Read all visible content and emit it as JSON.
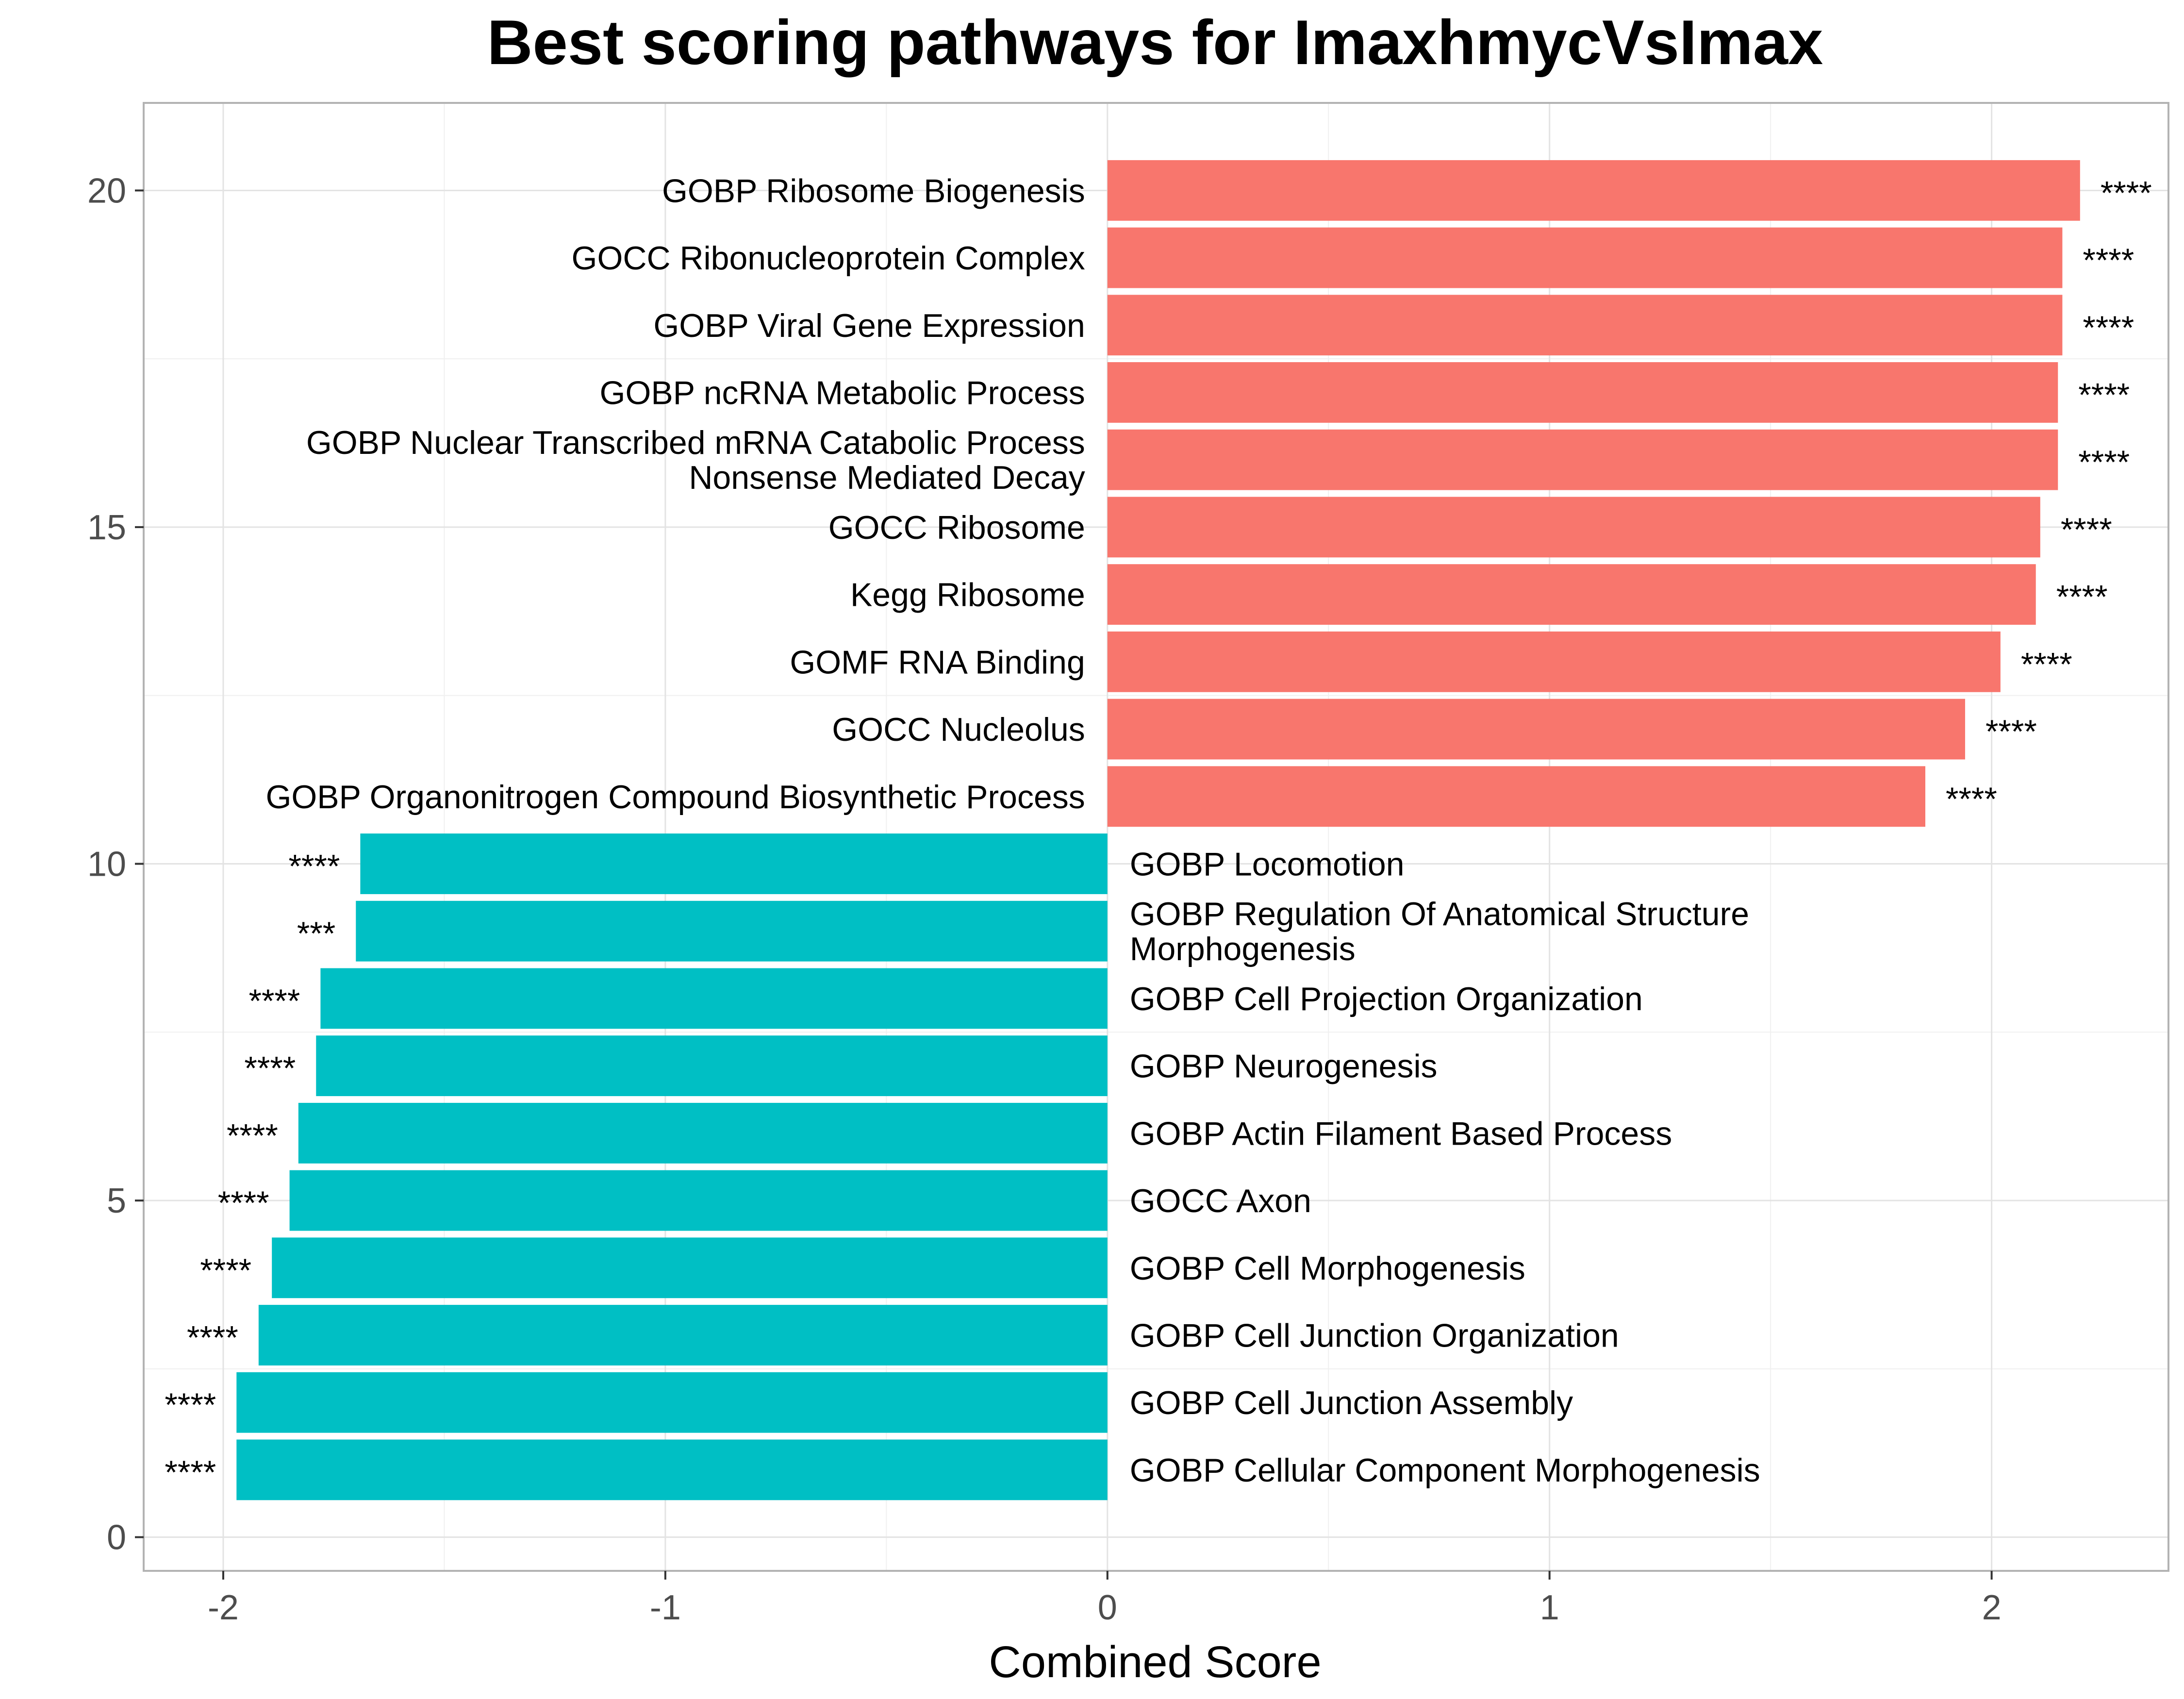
{
  "chart_data": {
    "type": "bar",
    "orientation": "horizontal",
    "title": "Best scoring pathways for ImaxhmycVsImax",
    "xlabel": "Combined Score",
    "ylabel": "",
    "xlim": [
      -2.18,
      2.4
    ],
    "ylim": [
      -0.5,
      21.3
    ],
    "xticks": [
      -2,
      -1,
      0,
      1,
      2
    ],
    "xtick_labels": [
      "-2",
      "-1",
      "0",
      "1",
      "2"
    ],
    "yticks": [
      0,
      5,
      10,
      15,
      20
    ],
    "ytick_labels": [
      "0",
      "5",
      "10",
      "15",
      "20"
    ],
    "grid": true,
    "legend": "none",
    "colors": {
      "positive": "#F8766D",
      "negative": "#00BFC4"
    },
    "bars": [
      {
        "y": 20,
        "value": 2.2,
        "label": [
          "GOBP Ribosome Biogenesis"
        ],
        "stars": "****"
      },
      {
        "y": 19,
        "value": 2.16,
        "label": [
          "GOCC Ribonucleoprotein Complex"
        ],
        "stars": "****"
      },
      {
        "y": 18,
        "value": 2.16,
        "label": [
          "GOBP Viral Gene Expression"
        ],
        "stars": "****"
      },
      {
        "y": 17,
        "value": 2.15,
        "label": [
          "GOBP ncRNA Metabolic Process"
        ],
        "stars": "****"
      },
      {
        "y": 16,
        "value": 2.15,
        "label": [
          "GOBP Nuclear Transcribed mRNA Catabolic Process",
          "Nonsense Mediated Decay"
        ],
        "stars": "****"
      },
      {
        "y": 15,
        "value": 2.11,
        "label": [
          "GOCC Ribosome"
        ],
        "stars": "****"
      },
      {
        "y": 14,
        "value": 2.1,
        "label": [
          "Kegg Ribosome"
        ],
        "stars": "****"
      },
      {
        "y": 13,
        "value": 2.02,
        "label": [
          "GOMF RNA Binding"
        ],
        "stars": "****"
      },
      {
        "y": 12,
        "value": 1.94,
        "label": [
          "GOCC Nucleolus"
        ],
        "stars": "****"
      },
      {
        "y": 11,
        "value": 1.85,
        "label": [
          "GOBP Organonitrogen Compound Biosynthetic Process"
        ],
        "stars": "****"
      },
      {
        "y": 10,
        "value": -1.69,
        "label": [
          "GOBP Locomotion"
        ],
        "stars": "****"
      },
      {
        "y": 9,
        "value": -1.7,
        "label": [
          "GOBP Regulation Of Anatomical Structure",
          "Morphogenesis"
        ],
        "stars": "***"
      },
      {
        "y": 8,
        "value": -1.78,
        "label": [
          "GOBP Cell Projection Organization"
        ],
        "stars": "****"
      },
      {
        "y": 7,
        "value": -1.79,
        "label": [
          "GOBP Neurogenesis"
        ],
        "stars": "****"
      },
      {
        "y": 6,
        "value": -1.83,
        "label": [
          "GOBP Actin Filament Based Process"
        ],
        "stars": "****"
      },
      {
        "y": 5,
        "value": -1.85,
        "label": [
          "GOCC Axon"
        ],
        "stars": "****"
      },
      {
        "y": 4,
        "value": -1.89,
        "label": [
          "GOBP Cell Morphogenesis"
        ],
        "stars": "****"
      },
      {
        "y": 3,
        "value": -1.92,
        "label": [
          "GOBP Cell Junction Organization"
        ],
        "stars": "****"
      },
      {
        "y": 2,
        "value": -1.97,
        "label": [
          "GOBP Cell Junction Assembly"
        ],
        "stars": "****"
      },
      {
        "y": 1,
        "value": -1.97,
        "label": [
          "GOBP Cellular Component Morphogenesis"
        ],
        "stars": "****"
      }
    ]
  }
}
